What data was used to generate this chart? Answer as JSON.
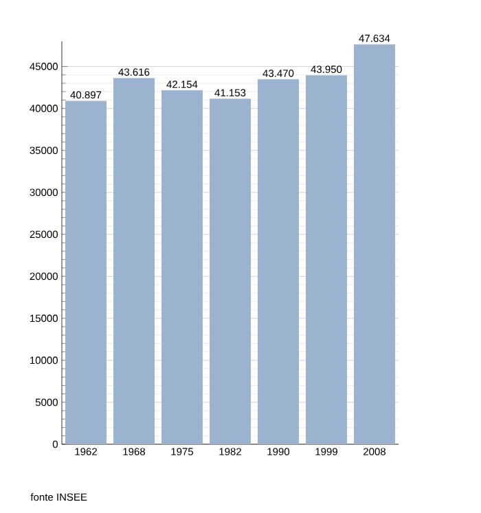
{
  "chart_data": {
    "type": "bar",
    "categories": [
      "1962",
      "1968",
      "1975",
      "1982",
      "1990",
      "1999",
      "2008"
    ],
    "values": [
      40897,
      43616,
      42154,
      41153,
      43470,
      43950,
      47634
    ],
    "value_labels": [
      "40.897",
      "43.616",
      "42.154",
      "41.153",
      "43.470",
      "43.950",
      "47.634"
    ],
    "color": "#9bb3cf",
    "ylim": [
      0,
      48000
    ],
    "yticks": [
      0,
      5000,
      10000,
      15000,
      20000,
      25000,
      30000,
      35000,
      40000,
      45000
    ],
    "grid": "y",
    "annotations": [
      "fonte INSEE"
    ]
  }
}
